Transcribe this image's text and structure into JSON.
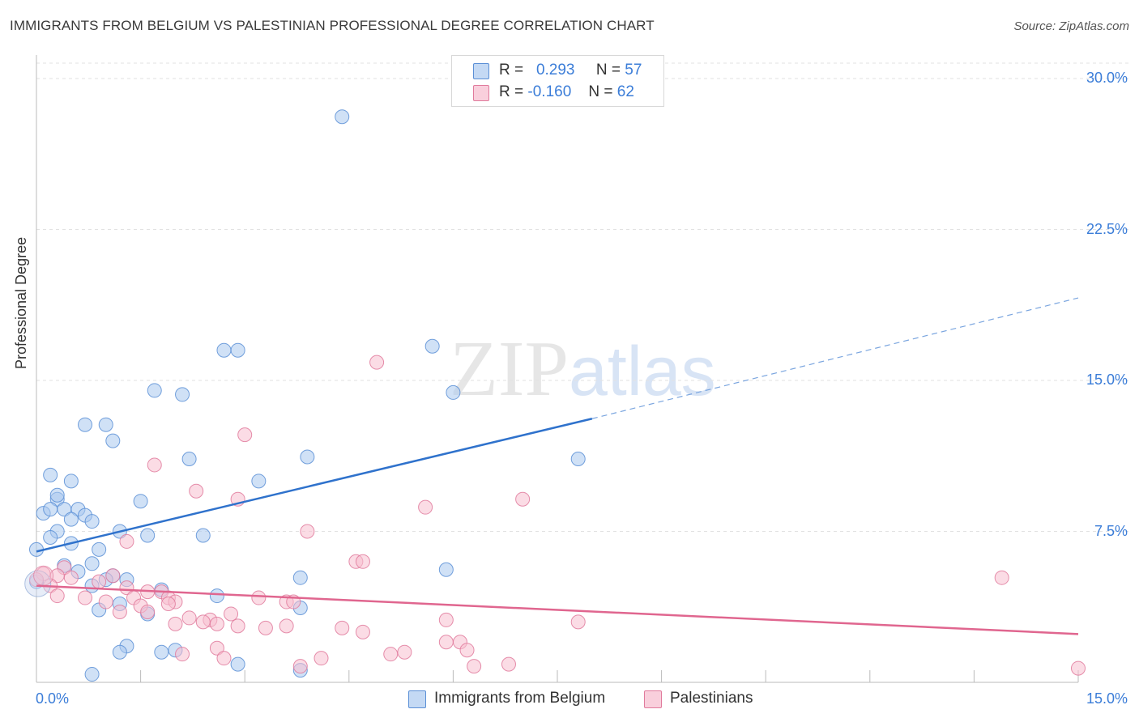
{
  "title": "IMMIGRANTS FROM BELGIUM VS PALESTINIAN PROFESSIONAL DEGREE CORRELATION CHART",
  "source": "Source: ZipAtlas.com",
  "watermark": {
    "part1": "ZIP",
    "part2": "atlas"
  },
  "legend": {
    "series1": {
      "r_label": "R =",
      "r_value": "0.293",
      "n_label": "N =",
      "n_value": "57",
      "color": "#aac8ef",
      "border": "#5b8fd6"
    },
    "series2": {
      "r_label": "R =",
      "r_value": "-0.160",
      "n_label": "N =",
      "n_value": "62",
      "color": "#f7bfd0",
      "border": "#e07a9c"
    }
  },
  "bottom_legend": {
    "series1": "Immigrants from Belgium",
    "series2": "Palestinians"
  },
  "chart_data": {
    "type": "scatter",
    "title": "IMMIGRANTS FROM BELGIUM VS PALESTINIAN PROFESSIONAL DEGREE CORRELATION CHART",
    "xlabel": "",
    "ylabel": "Professional Degree",
    "xlim": [
      0,
      15
    ],
    "ylim": [
      0,
      30
    ],
    "x_tick_labels": [
      "0.0%",
      "15.0%"
    ],
    "y_tick_labels": [
      "7.5%",
      "15.0%",
      "22.5%",
      "30.0%"
    ],
    "y_ticks": [
      7.5,
      15,
      22.5,
      30
    ],
    "grid": true,
    "legend_position": "top-center",
    "series": [
      {
        "name": "Immigrants from Belgium",
        "color": "#5b8fd6",
        "fill": "#aac8ef",
        "trend": {
          "x0": 0.0,
          "y0": 6.5,
          "x1": 8.0,
          "y1": 13.1,
          "dash_to_x": 15.0,
          "dash_to_y": 19.1
        },
        "points": [
          [
            4.4,
            28.1
          ],
          [
            2.7,
            16.5
          ],
          [
            2.9,
            16.5
          ],
          [
            5.7,
            16.7
          ],
          [
            1.7,
            14.5
          ],
          [
            2.1,
            14.3
          ],
          [
            6.0,
            14.4
          ],
          [
            0.7,
            12.8
          ],
          [
            1.0,
            12.8
          ],
          [
            1.1,
            12.0
          ],
          [
            2.2,
            11.1
          ],
          [
            3.9,
            11.2
          ],
          [
            7.8,
            11.1
          ],
          [
            0.2,
            10.3
          ],
          [
            0.5,
            10.0
          ],
          [
            3.2,
            10.0
          ],
          [
            0.3,
            9.1
          ],
          [
            0.3,
            9.3
          ],
          [
            1.5,
            9.0
          ],
          [
            0.1,
            8.4
          ],
          [
            0.2,
            8.6
          ],
          [
            0.4,
            8.6
          ],
          [
            0.6,
            8.6
          ],
          [
            0.7,
            8.3
          ],
          [
            0.5,
            8.1
          ],
          [
            0.8,
            8.0
          ],
          [
            0.3,
            7.5
          ],
          [
            1.2,
            7.5
          ],
          [
            1.6,
            7.3
          ],
          [
            2.4,
            7.3
          ],
          [
            0.2,
            7.2
          ],
          [
            0.5,
            6.9
          ],
          [
            0.0,
            6.6
          ],
          [
            0.9,
            6.6
          ],
          [
            0.4,
            5.8
          ],
          [
            0.8,
            5.9
          ],
          [
            0.6,
            5.5
          ],
          [
            1.1,
            5.3
          ],
          [
            0.0,
            5.0
          ],
          [
            1.0,
            5.1
          ],
          [
            1.3,
            5.1
          ],
          [
            0.8,
            4.8
          ],
          [
            1.8,
            4.6
          ],
          [
            3.8,
            5.2
          ],
          [
            5.9,
            5.6
          ],
          [
            1.2,
            3.9
          ],
          [
            0.9,
            3.6
          ],
          [
            1.6,
            3.4
          ],
          [
            2.6,
            4.3
          ],
          [
            3.8,
            3.7
          ],
          [
            1.3,
            1.8
          ],
          [
            1.2,
            1.5
          ],
          [
            1.8,
            1.5
          ],
          [
            2.0,
            1.6
          ],
          [
            2.9,
            0.9
          ],
          [
            3.8,
            0.6
          ],
          [
            0.8,
            0.4
          ]
        ]
      },
      {
        "name": "Palestinians",
        "color": "#e07a9c",
        "fill": "#f7bfd0",
        "trend": {
          "x0": 0.0,
          "y0": 4.8,
          "x1": 15.0,
          "y1": 2.4
        },
        "points": [
          [
            4.9,
            15.9
          ],
          [
            3.0,
            12.3
          ],
          [
            1.7,
            10.8
          ],
          [
            2.3,
            9.5
          ],
          [
            2.9,
            9.1
          ],
          [
            7.0,
            9.1
          ],
          [
            5.6,
            8.7
          ],
          [
            3.9,
            7.5
          ],
          [
            1.3,
            7.0
          ],
          [
            4.6,
            6.0
          ],
          [
            4.7,
            6.0
          ],
          [
            0.4,
            5.7
          ],
          [
            0.1,
            5.4
          ],
          [
            0.3,
            5.3
          ],
          [
            0.5,
            5.2
          ],
          [
            0.0,
            5.1
          ],
          [
            0.2,
            4.8
          ],
          [
            1.1,
            5.3
          ],
          [
            0.9,
            5.0
          ],
          [
            1.3,
            4.7
          ],
          [
            0.3,
            4.3
          ],
          [
            0.7,
            4.2
          ],
          [
            1.0,
            4.0
          ],
          [
            1.6,
            4.5
          ],
          [
            1.8,
            4.5
          ],
          [
            1.4,
            4.2
          ],
          [
            1.5,
            3.8
          ],
          [
            1.9,
            4.2
          ],
          [
            2.0,
            4.0
          ],
          [
            1.9,
            3.9
          ],
          [
            1.6,
            3.5
          ],
          [
            1.2,
            3.5
          ],
          [
            3.2,
            4.2
          ],
          [
            3.6,
            4.0
          ],
          [
            3.7,
            4.0
          ],
          [
            2.8,
            3.4
          ],
          [
            2.2,
            3.2
          ],
          [
            2.5,
            3.1
          ],
          [
            2.0,
            2.9
          ],
          [
            2.4,
            3.0
          ],
          [
            2.6,
            2.9
          ],
          [
            2.9,
            2.8
          ],
          [
            3.3,
            2.7
          ],
          [
            3.6,
            2.8
          ],
          [
            4.4,
            2.7
          ],
          [
            4.7,
            2.5
          ],
          [
            5.9,
            3.1
          ],
          [
            7.8,
            3.0
          ],
          [
            13.9,
            5.2
          ],
          [
            5.9,
            2.0
          ],
          [
            6.1,
            2.0
          ],
          [
            2.6,
            1.7
          ],
          [
            6.2,
            1.6
          ],
          [
            5.1,
            1.4
          ],
          [
            5.3,
            1.5
          ],
          [
            2.1,
            1.4
          ],
          [
            4.1,
            1.2
          ],
          [
            2.7,
            1.2
          ],
          [
            3.8,
            0.8
          ],
          [
            6.3,
            0.8
          ],
          [
            6.8,
            0.9
          ],
          [
            15.0,
            0.7
          ]
        ]
      }
    ]
  }
}
